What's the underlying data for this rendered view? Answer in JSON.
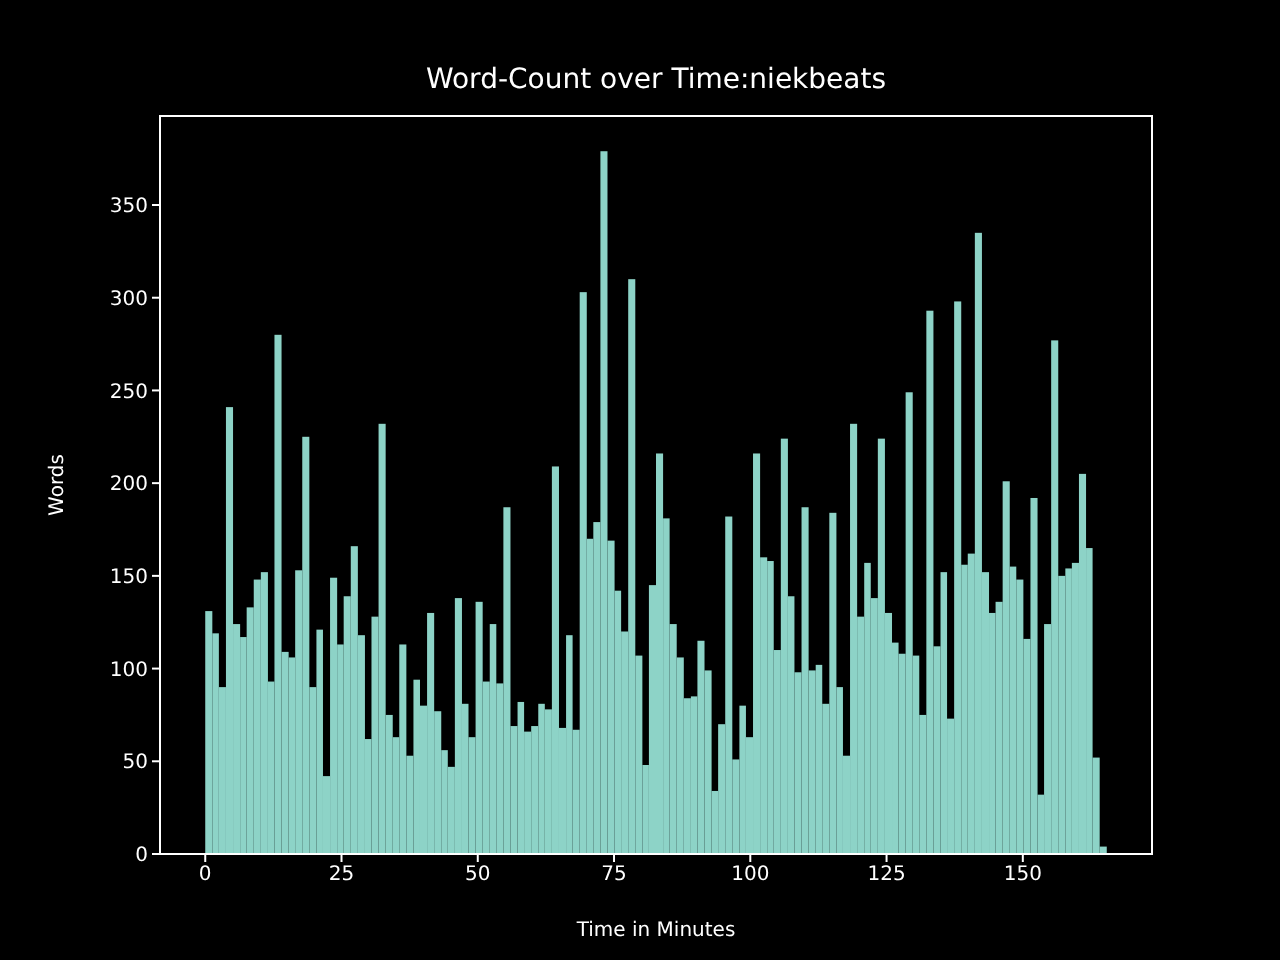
{
  "chart_data": {
    "type": "histogram",
    "title": "Word-Count over Time:niekbeats",
    "xlabel": "Time in Minutes",
    "ylabel": "Words",
    "color": "#8dd3c7",
    "bins": [
      0,
      1.3,
      2.5,
      3.8,
      5.1,
      6.4,
      7.6,
      8.9,
      10.2,
      11.5,
      12.7,
      14.0,
      15.3,
      16.5,
      17.8,
      19.1,
      20.4,
      21.6,
      22.9,
      24.2,
      25.4,
      26.7,
      28.0,
      29.3,
      30.5,
      31.8,
      33.1,
      34.4,
      35.6,
      36.9,
      38.2,
      39.4,
      40.7,
      42.0,
      43.3,
      44.5,
      45.8,
      47.1,
      48.3,
      49.6,
      50.9,
      52.2,
      53.4,
      54.7,
      56.0,
      57.3,
      58.5,
      59.8,
      61.1,
      62.3,
      63.6,
      64.9,
      66.2,
      67.4,
      68.7,
      70.0,
      71.2,
      72.5,
      73.8,
      75.1,
      76.3,
      77.6,
      78.9,
      80.2,
      81.4,
      82.7,
      84.0,
      85.2,
      86.5,
      87.8,
      89.1,
      90.3,
      91.6,
      92.9,
      94.1,
      95.4,
      96.7,
      98.0,
      99.2,
      100.5,
      101.8,
      103.1,
      104.3,
      105.6,
      106.9,
      108.1,
      109.4,
      110.7,
      112.0,
      113.2,
      114.5,
      115.8,
      117.0,
      118.3,
      119.6,
      120.9,
      122.1,
      123.4,
      124.7,
      126.0,
      127.2,
      128.5,
      129.8,
      131.0,
      132.3,
      133.6,
      134.9,
      136.1,
      137.4,
      138.7,
      139.9,
      141.2,
      142.5,
      143.8,
      145.0,
      146.3,
      147.6,
      148.8,
      150.1,
      151.4,
      152.7,
      153.9,
      155.2,
      156.5,
      157.8,
      159.0,
      160.3,
      161.6,
      162.8,
      164.1,
      165.4
    ],
    "values": [
      131,
      119,
      90,
      241,
      124,
      117,
      133,
      148,
      152,
      93,
      280,
      109,
      106,
      153,
      225,
      90,
      121,
      42,
      149,
      113,
      139,
      166,
      118,
      62,
      128,
      232,
      75,
      63,
      113,
      53,
      94,
      80,
      130,
      77,
      56,
      47,
      138,
      81,
      63,
      136,
      93,
      124,
      92,
      187,
      69,
      82,
      66,
      69,
      81,
      78,
      209,
      68,
      118,
      67,
      303,
      170,
      179,
      379,
      169,
      142,
      120,
      310,
      107,
      48,
      145,
      216,
      181,
      124,
      106,
      84,
      85,
      115,
      99,
      34,
      70,
      182,
      51,
      80,
      63,
      216,
      160,
      158,
      110,
      224,
      139,
      98,
      187,
      99,
      102,
      81,
      184,
      90,
      53,
      232,
      128,
      157,
      138,
      224,
      130,
      114,
      108,
      249,
      107,
      75,
      293,
      112,
      152,
      73,
      298,
      156,
      162,
      335,
      152,
      130,
      136,
      201,
      155,
      148,
      116,
      192,
      32,
      124,
      277,
      150,
      154,
      157,
      205,
      165,
      52,
      4
    ],
    "xlim": [
      -8.3,
      173.7
    ],
    "xticks": [
      0,
      25,
      50,
      75,
      100,
      125,
      150
    ],
    "ylim": [
      0,
      398
    ],
    "yticks": [
      0,
      50,
      100,
      150,
      200,
      250,
      300,
      350
    ]
  }
}
